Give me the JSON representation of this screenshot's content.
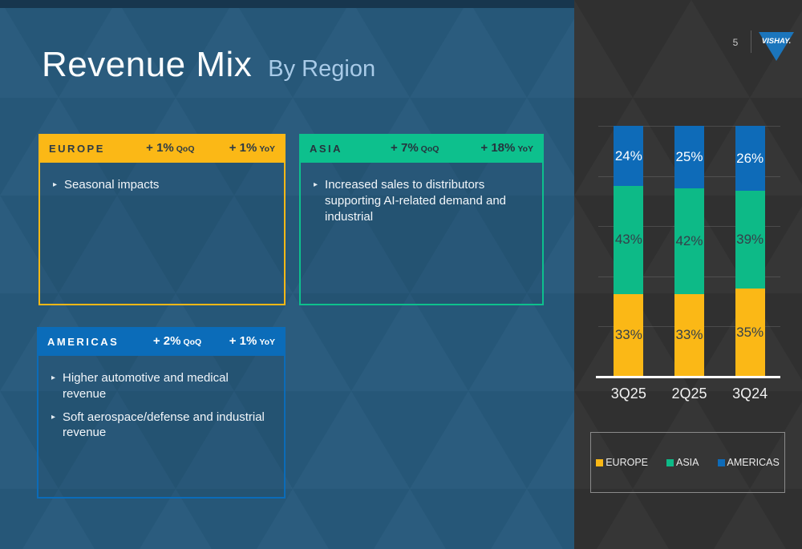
{
  "slide": {
    "title": "Revenue Mix",
    "subtitle": "By Region",
    "page_number": "5",
    "logo_text": "VISHAY.",
    "colors": {
      "background_left": "#2B5C7E",
      "background_right": "#353535",
      "top_strip": "#17364E",
      "subtitle_text": "#A9CBE8",
      "logo_blue": "#1B75BC"
    }
  },
  "regions": [
    {
      "name": "EUROPE",
      "qoq_value": "+ 1%",
      "qoq_label": "QoQ",
      "yoy_value": "+ 1%",
      "yoy_label": "YoY",
      "color": "#FBB816",
      "header_text_color": "#2E3B45",
      "bullets": [
        "Seasonal impacts"
      ]
    },
    {
      "name": "ASIA",
      "qoq_value": "+ 7%",
      "qoq_label": "QoQ",
      "yoy_value": "+ 18%",
      "yoy_label": "YoY",
      "color": "#0DC08D",
      "header_text_color": "#26343E",
      "bullets": [
        "Increased sales to distributors supporting AI-related demand and industrial"
      ]
    },
    {
      "name": "AMERICAS",
      "qoq_value": "+ 2%",
      "qoq_label": "QoQ",
      "yoy_value": "+ 1%",
      "yoy_label": "YoY",
      "color": "#0B6CB9",
      "header_text_color": "#FFFFFF",
      "bullets": [
        "Higher automotive and medical revenue",
        "Soft aerospace/defense and industrial revenue"
      ]
    }
  ],
  "chart_data": {
    "type": "bar",
    "stacked": true,
    "title": "",
    "categories": [
      "3Q25",
      "2Q25",
      "3Q24"
    ],
    "series": [
      {
        "name": "EUROPE",
        "color": "#FBB816",
        "label_color": "#34404A",
        "values": [
          33,
          33,
          35
        ]
      },
      {
        "name": "ASIA",
        "color": "#0DBA87",
        "label_color": "#34404A",
        "values": [
          43,
          42,
          39
        ]
      },
      {
        "name": "AMERICAS",
        "color": "#0E6BB8",
        "label_color": "#FFFFFF",
        "values": [
          24,
          25,
          26
        ]
      }
    ],
    "value_suffix": "%",
    "ylim": [
      0,
      100
    ],
    "grid_step": 20,
    "grid": "horizontal",
    "legend_position": "bottom",
    "legend": [
      "EUROPE",
      "ASIA",
      "AMERICAS"
    ]
  }
}
